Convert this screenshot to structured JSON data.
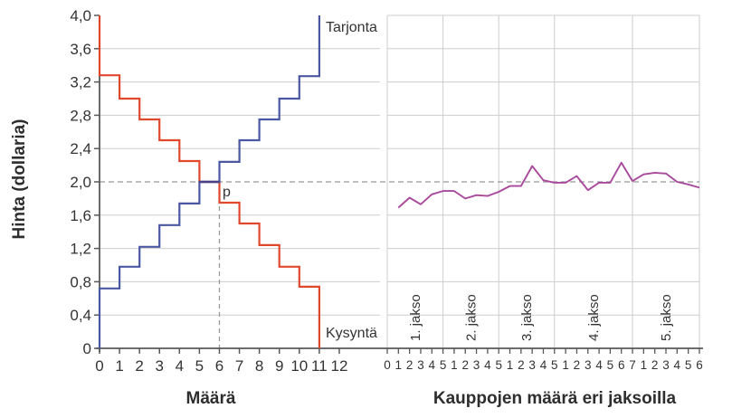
{
  "labels": {
    "y_axis_title": "Hinta (dollaria)",
    "left_x_axis_title": "Määrä",
    "right_x_axis_title": "Kauppojen määrä eri jaksoilla",
    "supply_label": "Tarjonta",
    "demand_label": "Kysyntä",
    "equilibrium_label": "p"
  },
  "colors": {
    "demand": "#e0482e",
    "supply": "#4a57a3",
    "overlap": "#4b4189",
    "price_line": "#a8499c",
    "grid": "#cdcdcd",
    "dashed": "#999999",
    "axis": "#58595b",
    "text": "#333333"
  },
  "chart_data": [
    {
      "type": "line",
      "panel": "left",
      "title": "Supply and demand step functions",
      "xlabel": "Määrä",
      "ylabel": "Hinta (dollaria)",
      "xlim": [
        0,
        14
      ],
      "ylim": [
        0,
        4.0
      ],
      "grid": "horizontal only",
      "x_tick_labels": [
        "0",
        "1",
        "2",
        "3",
        "4",
        "5",
        "6",
        "7",
        "8",
        "9",
        "10",
        "11",
        "12"
      ],
      "y_tick_values": [
        0,
        0.4,
        0.8,
        1.2,
        1.6,
        2.0,
        2.4,
        2.8,
        3.2,
        3.6,
        4.0
      ],
      "y_tick_labels": [
        "0",
        "0,4",
        "0,8",
        "1,2",
        "1,6",
        "2,0",
        "2,4",
        "2,8",
        "3,2",
        "3,6",
        "4,0"
      ],
      "series": [
        {
          "name": "Kysyntä",
          "shape": "step",
          "color": "#e0482e",
          "start_price": 4.0,
          "step_prices_per_unit": [
            3.28,
            3.0,
            2.75,
            2.5,
            2.25,
            2.0,
            1.75,
            1.5,
            1.24,
            0.98,
            0.74
          ],
          "end_price": 0
        },
        {
          "name": "Tarjonta",
          "shape": "step",
          "color": "#4a57a3",
          "start_price": 0,
          "step_prices_per_unit": [
            0.72,
            0.98,
            1.22,
            1.48,
            1.74,
            2.0,
            2.24,
            2.5,
            2.75,
            3.0,
            3.27
          ],
          "end_price": 4.0
        }
      ],
      "equilibrium": {
        "price": 2.0,
        "quantity": 6,
        "label": "p",
        "dashed_guides": true
      }
    },
    {
      "type": "line",
      "panel": "right",
      "title": "Traded prices per period",
      "xlabel": "Kauppojen määrä eri jaksoilla",
      "ylim": [
        0,
        4.0
      ],
      "grid": "full grid, vertical lines at period boundaries",
      "line_color": "#a8499c",
      "dashed_reference_price": 2.0,
      "zero_tick_label": "0",
      "periods": [
        {
          "label": "1. jakso",
          "trade_prices": [
            1.69,
            1.81,
            1.73,
            1.85,
            1.89
          ]
        },
        {
          "label": "2. jakso",
          "trade_prices": [
            1.89,
            1.8,
            1.84,
            1.83,
            1.88
          ]
        },
        {
          "label": "3. jakso",
          "trade_prices": [
            1.95,
            1.95,
            2.19,
            2.02,
            1.99
          ]
        },
        {
          "label": "4. jakso",
          "trade_prices": [
            1.99,
            2.07,
            1.9,
            1.99,
            1.99,
            2.23,
            2.01
          ]
        },
        {
          "label": "5. jakso",
          "trade_prices": [
            2.09,
            2.11,
            2.1,
            2.0,
            1.97,
            1.93
          ]
        }
      ]
    }
  ]
}
